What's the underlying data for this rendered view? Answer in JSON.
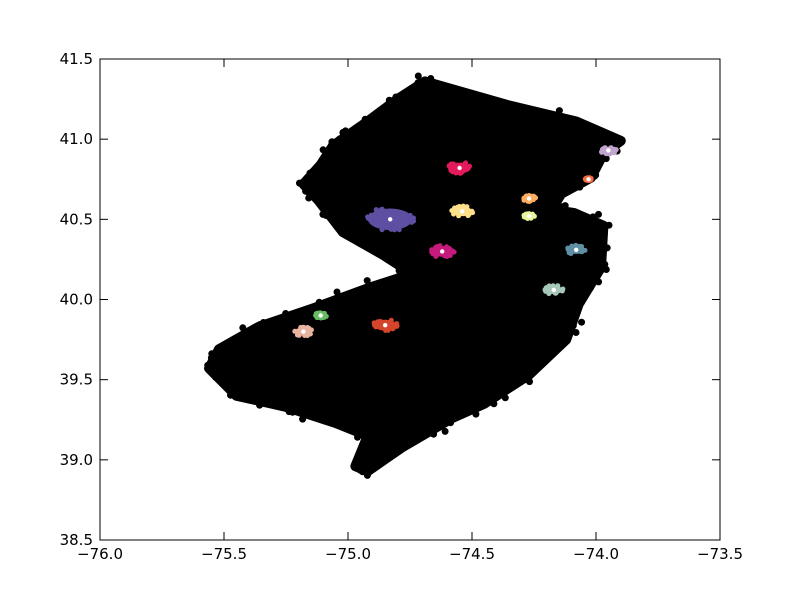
{
  "chart_data": {
    "type": "scatter",
    "title": "",
    "xlabel": "",
    "ylabel": "",
    "xlim": [
      -76.0,
      -73.5
    ],
    "ylim": [
      38.5,
      41.5
    ],
    "x_ticks": [
      -76.0,
      -75.5,
      -75.0,
      -74.5,
      -74.0,
      -73.5
    ],
    "x_tick_labels": [
      "−76.0",
      "−75.5",
      "−75.0",
      "−74.5",
      "−74.0",
      "−73.5"
    ],
    "y_ticks": [
      38.5,
      39.0,
      39.5,
      40.0,
      40.5,
      41.0,
      41.5
    ],
    "y_tick_labels": [
      "38.5",
      "39.0",
      "39.5",
      "40.0",
      "40.5",
      "41.0",
      "41.5"
    ],
    "grid": false,
    "background_points_color": "#000000",
    "background_region_outline": [
      [
        -74.69,
        41.36
      ],
      [
        -74.35,
        41.21
      ],
      [
        -74.08,
        41.11
      ],
      [
        -73.9,
        40.99
      ],
      [
        -73.97,
        40.91
      ],
      [
        -74.02,
        40.76
      ],
      [
        -74.14,
        40.66
      ],
      [
        -74.18,
        40.56
      ],
      [
        -74.09,
        40.54
      ],
      [
        -73.97,
        40.46
      ],
      [
        -73.98,
        40.2
      ],
      [
        -74.07,
        39.97
      ],
      [
        -74.12,
        39.75
      ],
      [
        -74.27,
        39.53
      ],
      [
        -74.45,
        39.35
      ],
      [
        -74.58,
        39.26
      ],
      [
        -74.78,
        39.08
      ],
      [
        -74.92,
        38.93
      ],
      [
        -74.97,
        38.96
      ],
      [
        -74.92,
        39.15
      ],
      [
        -75.05,
        39.23
      ],
      [
        -75.25,
        39.33
      ],
      [
        -75.45,
        39.4
      ],
      [
        -75.56,
        39.57
      ],
      [
        -75.52,
        39.69
      ],
      [
        -75.36,
        39.83
      ],
      [
        -75.13,
        39.95
      ],
      [
        -74.92,
        40.07
      ],
      [
        -74.74,
        40.16
      ],
      [
        -74.86,
        40.28
      ],
      [
        -75.02,
        40.42
      ],
      [
        -75.12,
        40.62
      ],
      [
        -75.18,
        40.72
      ],
      [
        -75.11,
        40.84
      ],
      [
        -75.06,
        40.96
      ],
      [
        -74.93,
        41.1
      ],
      [
        -74.8,
        41.25
      ]
    ],
    "clusters": [
      {
        "center": [
          -74.83,
          40.5
        ],
        "radius_deg": 0.09,
        "color": "#5e4fa2"
      },
      {
        "center": [
          -74.55,
          40.82
        ],
        "radius_deg": 0.045,
        "color": "#e31a5c"
      },
      {
        "center": [
          -74.54,
          40.55
        ],
        "radius_deg": 0.04,
        "color": "#fee08b"
      },
      {
        "center": [
          -74.62,
          40.3
        ],
        "radius_deg": 0.045,
        "color": "#c51b7d"
      },
      {
        "center": [
          -74.27,
          40.63
        ],
        "radius_deg": 0.025,
        "color": "#fdae61"
      },
      {
        "center": [
          -74.27,
          40.52
        ],
        "radius_deg": 0.02,
        "color": "#e6f598"
      },
      {
        "center": [
          -73.95,
          40.93
        ],
        "radius_deg": 0.03,
        "color": "#c2a5cf"
      },
      {
        "center": [
          -74.03,
          40.75
        ],
        "radius_deg": 0.012,
        "color": "#f46d43"
      },
      {
        "center": [
          -74.08,
          40.31
        ],
        "radius_deg": 0.035,
        "color": "#5e8fa2"
      },
      {
        "center": [
          -74.17,
          40.06
        ],
        "radius_deg": 0.035,
        "color": "#a6c8b8"
      },
      {
        "center": [
          -74.85,
          39.84
        ],
        "radius_deg": 0.045,
        "color": "#d5452c"
      },
      {
        "center": [
          -75.11,
          39.9
        ],
        "radius_deg": 0.022,
        "color": "#66bd63"
      },
      {
        "center": [
          -75.18,
          39.8
        ],
        "radius_deg": 0.035,
        "color": "#e8b4a0"
      }
    ]
  }
}
